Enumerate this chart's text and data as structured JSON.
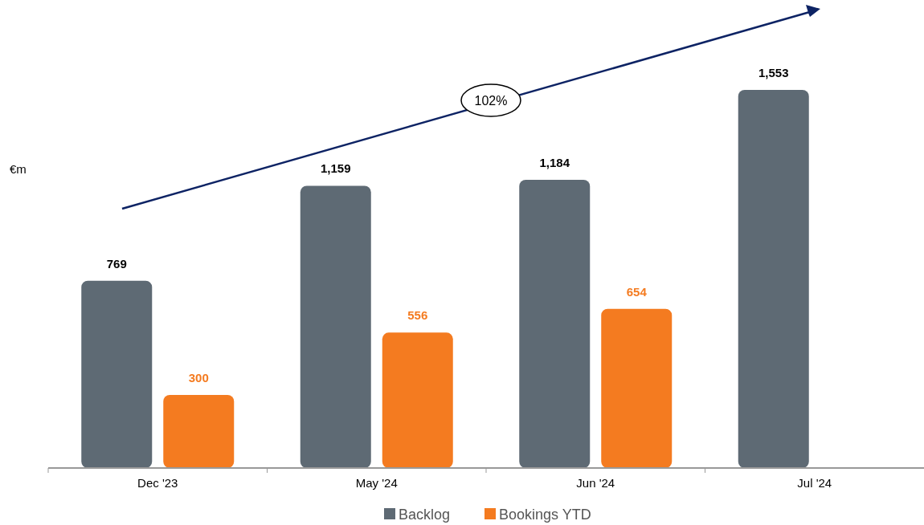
{
  "chart_data": {
    "type": "bar",
    "ylabel": "€m",
    "categories": [
      "Dec '23",
      "May '24",
      "Jun '24",
      "Jul '24"
    ],
    "series": [
      {
        "name": "Backlog",
        "color": "#5e6a74",
        "values": [
          769,
          1159,
          1184,
          1553
        ],
        "value_labels": [
          "769",
          "1,159",
          "1,184",
          "1,553"
        ]
      },
      {
        "name": "Bookings YTD",
        "color": "#f47b20",
        "values": [
          300,
          556,
          654,
          null
        ],
        "value_labels": [
          "300",
          "556",
          "654",
          null
        ]
      }
    ],
    "legend": "bottom",
    "annotations": [
      "102%"
    ]
  }
}
